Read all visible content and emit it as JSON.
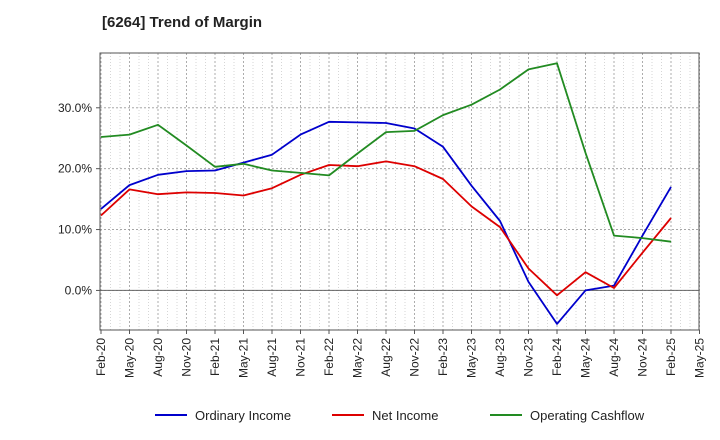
{
  "chart_data": {
    "type": "line",
    "title": "[6264]  Trend of Margin",
    "xlabel": "",
    "ylabel": "",
    "ylim": [
      -6.5,
      39
    ],
    "grid": true,
    "legend_position": "bottom",
    "x": [
      "Feb-20",
      "May-20",
      "Aug-20",
      "Nov-20",
      "Feb-21",
      "May-21",
      "Aug-21",
      "Nov-21",
      "Feb-22",
      "May-22",
      "Aug-22",
      "Nov-22",
      "Feb-23",
      "May-23",
      "Aug-23",
      "Nov-23",
      "Feb-24",
      "May-24",
      "Aug-24",
      "Nov-24",
      "Feb-25"
    ],
    "x_tick_labels": [
      "Feb-20",
      "May-20",
      "Aug-20",
      "Nov-20",
      "Feb-21",
      "May-21",
      "Aug-21",
      "Nov-21",
      "Feb-22",
      "May-22",
      "Aug-22",
      "Nov-22",
      "Feb-23",
      "May-23",
      "Aug-23",
      "Nov-23",
      "Feb-24",
      "May-24",
      "Aug-24",
      "Nov-24",
      "Feb-25",
      "May-25"
    ],
    "y_ticks": [
      0,
      10,
      20,
      30
    ],
    "y_tick_labels": [
      "0.0%",
      "10.0%",
      "20.0%",
      "30.0%"
    ],
    "series": [
      {
        "name": "Ordinary Income",
        "color": "#0000cc",
        "values": [
          13.4,
          17.3,
          19.0,
          19.6,
          19.7,
          21.0,
          22.3,
          25.6,
          27.7,
          27.6,
          27.5,
          26.6,
          23.6,
          17.2,
          11.4,
          1.4,
          -5.5,
          0.0,
          0.8,
          9.0,
          17.0
        ]
      },
      {
        "name": "Net Income",
        "color": "#dd0000",
        "values": [
          12.3,
          16.6,
          15.8,
          16.1,
          16.0,
          15.6,
          16.8,
          19.0,
          20.6,
          20.4,
          21.2,
          20.4,
          18.3,
          13.8,
          10.4,
          3.6,
          -0.8,
          3.0,
          0.4,
          6.2,
          11.9
        ]
      },
      {
        "name": "Operating Cashflow",
        "color": "#228b22",
        "values": [
          25.2,
          25.6,
          27.2,
          23.8,
          20.3,
          20.8,
          19.7,
          19.3,
          18.9,
          22.5,
          26.0,
          26.2,
          28.8,
          30.5,
          33.0,
          36.3,
          37.3,
          22.6,
          9.0,
          8.6,
          8.0
        ]
      }
    ]
  }
}
